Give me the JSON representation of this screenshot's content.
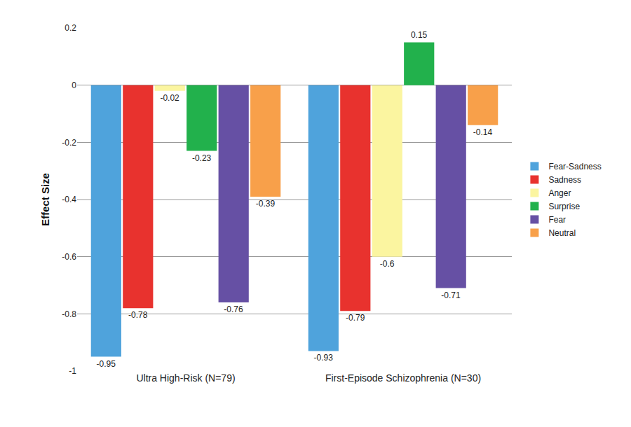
{
  "chart_data": {
    "type": "bar",
    "categories": [
      "Ultra High-Risk (N=79)",
      "First-Episode Schizophrenia (N=30)"
    ],
    "series": [
      {
        "name": "Fear-Sadness",
        "color": "#4fa3dc",
        "values": [
          -0.95,
          -0.93
        ]
      },
      {
        "name": "Sadness",
        "color": "#e8322e",
        "values": [
          -0.78,
          -0.79
        ]
      },
      {
        "name": "Anger",
        "color": "#fbf5a0",
        "values": [
          -0.02,
          -0.6
        ]
      },
      {
        "name": "Surprise",
        "color": "#22b14c",
        "values": [
          -0.23,
          0.15
        ]
      },
      {
        "name": "Fear",
        "color": "#6650a4",
        "values": [
          -0.76,
          -0.71
        ]
      },
      {
        "name": "Neutral",
        "color": "#f8a04a",
        "values": [
          -0.39,
          -0.14
        ]
      }
    ],
    "ylabel": "Effect Size",
    "ylim": [
      -1,
      0.2
    ],
    "yticks": [
      -1,
      -0.8,
      -0.6,
      -0.4,
      -0.2,
      0,
      0.2
    ],
    "grid": true,
    "legend": "right",
    "data_labels": true
  }
}
